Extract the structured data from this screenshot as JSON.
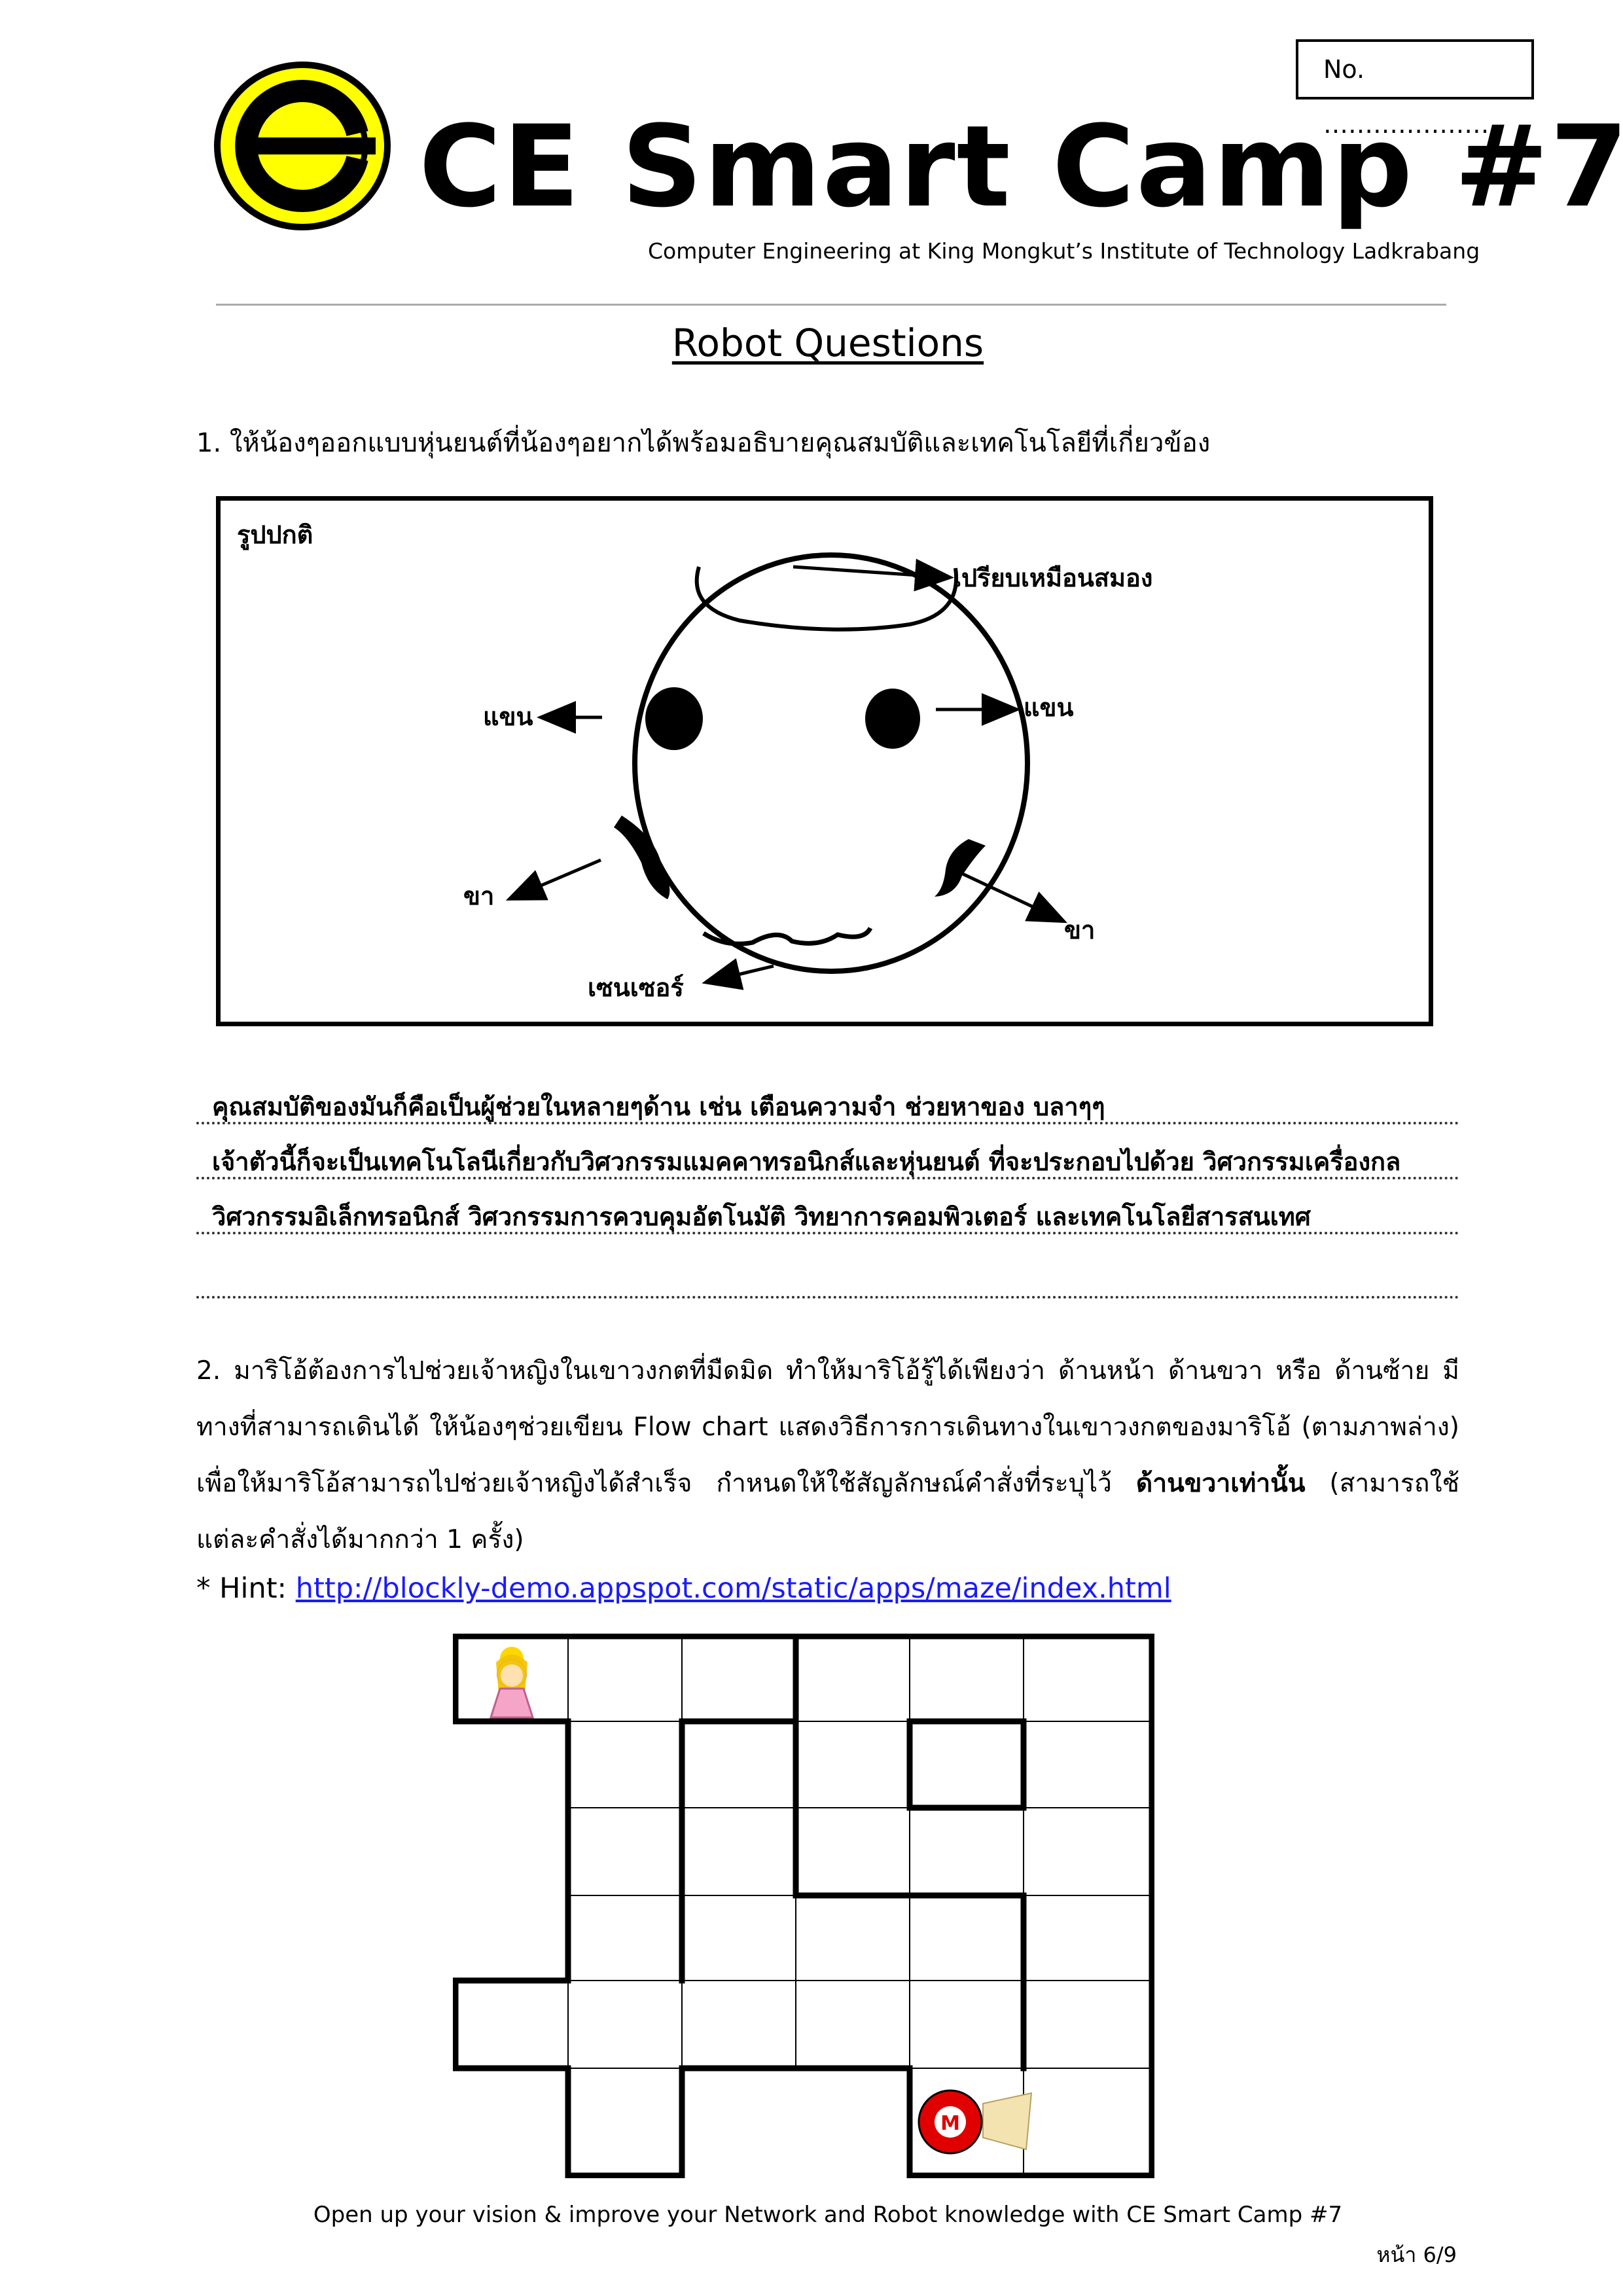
{
  "header": {
    "no_label": "No.  ………………….",
    "title": "CE Smart Camp #7",
    "subtitle": "Computer Engineering at King Mongkut’s Institute of Technology Ladkrabang"
  },
  "section_title": "Robot Questions",
  "question1": {
    "text": "1. ให้น้องๆออกแบบหุ่นยนต์ที่น้องๆอยากได้พร้อมอธิบายคุณสมบัติและเทคโนโลยีที่เกี่ยวข้อง",
    "diagram": {
      "frame_label": "รูปปกติ",
      "brain_label": "เปรียบเหมือนสมอง",
      "arm_left_label": "แขน",
      "arm_right_label": "แขน",
      "leg_left_label": "ขา",
      "leg_right_label": "ขา",
      "sensor_label": "เซนเซอร์"
    },
    "answer_lines": [
      "คุณสมบัติของมันก็คือเป็นผู้ช่วยในหลายๆด้าน เช่น เตือนความจำ ช่วยหาของ บลาๆๆ",
      "เจ้าตัวนี้ก็จะเป็นเทคโนโลนีเกี่ยวกับวิศวกรรมแมคคาทรอนิกส์และหุ่นยนต์ ที่จะประกอบไปด้วย  วิศวกรรมเครื่องกล",
      "วิศวกรรมอิเล็กทรอนิกส์ วิศวกรรมการควบคุมอัตโนมัติ วิทยาการคอมพิวเตอร์ และเทคโนโลยีสารสนเทศ",
      ""
    ]
  },
  "question2": {
    "text_part1": "2.  มาริโอ้ต้องการไปช่วยเจ้าหญิงในเขาวงกตที่มืดมิด ทำให้มาริโอ้รู้ได้เพียงว่า ด้านหน้า ด้านขวา หรือ ด้านซ้าย มีทางที่สามารถเดินได้ ให้น้องๆช่วยเขียน Flow chart แสดงวิธีการการเดินทางในเขาวงกตของมาริโอ้ (ตามภาพล่าง) เพื่อให้มาริโอ้สามารถไปช่วยเจ้าหญิงได้สำเร็จ กำหนดให้ใช้สัญลักษณ์คำสั่งที่ระบุไว้",
    "text_bold": "ด้านขวาเท่านั้น",
    "text_part2": " (สามารถใช้แต่ละคำสั่งได้มากกว่า 1 ครั้ง)"
  },
  "hint": {
    "label": "* Hint: ",
    "url": "http://blockly-demo.appspot.com/static/apps/maze/index.html"
  },
  "maze": {
    "marker_letter": "M"
  },
  "footer": {
    "text": "Open up your vision & improve your Network and Robot knowledge with CE Smart Camp #7",
    "page": "หน้า 6/9"
  },
  "colors": {
    "logo_yellow": "#ffff00",
    "mario_red": "#e00000",
    "link_blue": "#1a1aff",
    "princess_pink": "#f5a6c8"
  }
}
